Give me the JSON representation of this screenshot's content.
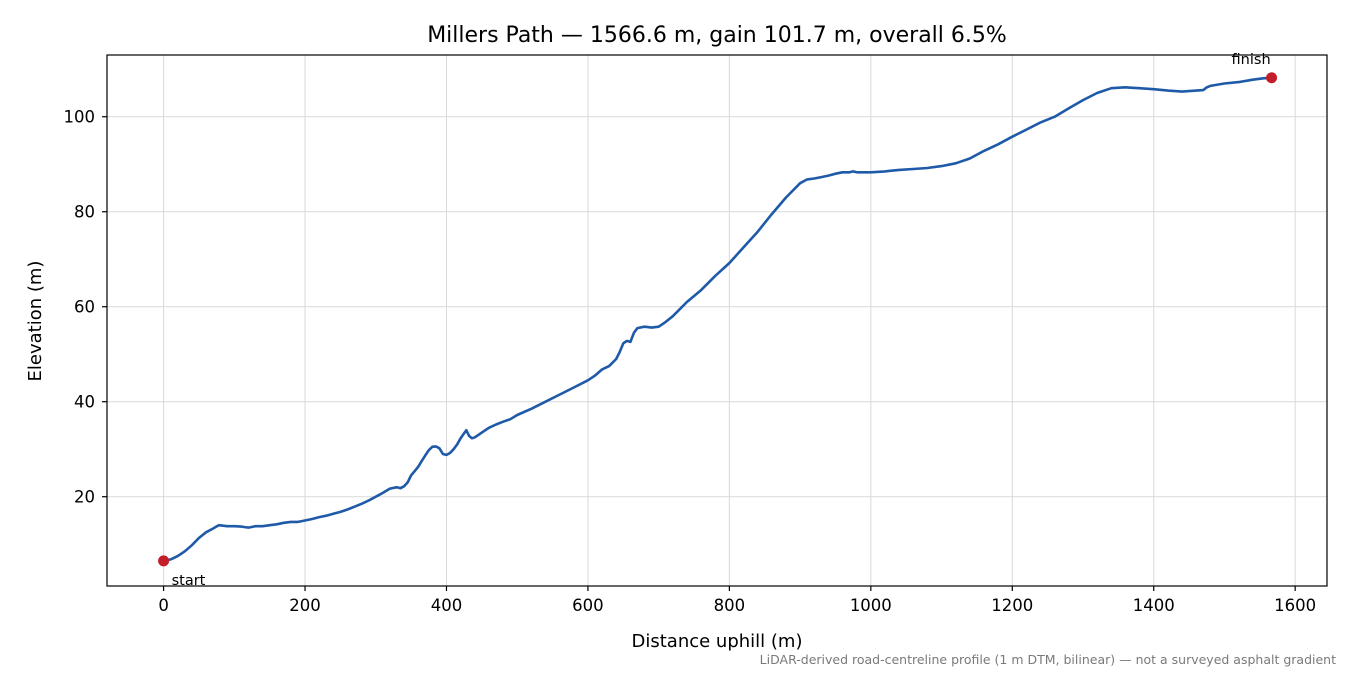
{
  "chart_data": {
    "type": "line",
    "title": "Millers Path — 1566.6 m, gain 101.7 m, overall 6.5%",
    "xlabel": "Distance uphill (m)",
    "ylabel": "Elevation (m)",
    "xlim": [
      -80,
      1645
    ],
    "ylim": [
      1.2,
      113
    ],
    "x_ticks": [
      0,
      200,
      400,
      600,
      800,
      1000,
      1200,
      1400,
      1600
    ],
    "y_ticks": [
      20,
      40,
      60,
      80,
      100
    ],
    "grid": true,
    "series": [
      {
        "color": "#1f5aa8",
        "x": [
          0,
          10,
          20,
          30,
          40,
          50,
          60,
          70,
          78,
          90,
          100,
          110,
          120,
          130,
          140,
          150,
          160,
          170,
          180,
          190,
          200,
          210,
          220,
          230,
          240,
          250,
          260,
          270,
          280,
          290,
          300,
          310,
          320,
          330,
          335,
          340,
          345,
          350,
          355,
          360,
          365,
          370,
          375,
          380,
          385,
          390,
          395,
          400,
          405,
          410,
          415,
          420,
          425,
          428,
          432,
          436,
          440,
          445,
          450,
          460,
          470,
          480,
          490,
          500,
          520,
          540,
          560,
          580,
          600,
          610,
          620,
          630,
          640,
          645,
          650,
          655,
          660,
          665,
          670,
          680,
          690,
          700,
          710,
          720,
          730,
          740,
          760,
          780,
          800,
          820,
          840,
          860,
          880,
          900,
          910,
          920,
          930,
          940,
          950,
          960,
          970,
          975,
          980,
          1000,
          1020,
          1040,
          1060,
          1080,
          1100,
          1120,
          1140,
          1160,
          1180,
          1200,
          1220,
          1240,
          1260,
          1280,
          1300,
          1320,
          1340,
          1360,
          1370,
          1380,
          1400,
          1420,
          1440,
          1460,
          1470,
          1475,
          1480,
          1500,
          1520,
          1540,
          1555,
          1566.6
        ],
        "y": [
          6.5,
          6.8,
          7.5,
          8.5,
          9.8,
          11.3,
          12.5,
          13.3,
          14.0,
          13.8,
          13.8,
          13.7,
          13.5,
          13.8,
          13.8,
          14.0,
          14.2,
          14.5,
          14.7,
          14.7,
          15.0,
          15.3,
          15.7,
          16.0,
          16.4,
          16.8,
          17.3,
          17.9,
          18.5,
          19.2,
          20.0,
          20.8,
          21.7,
          22.0,
          21.8,
          22.2,
          23.0,
          24.5,
          25.4,
          26.3,
          27.5,
          28.7,
          29.8,
          30.5,
          30.6,
          30.2,
          29.0,
          28.8,
          29.2,
          30.0,
          31.0,
          32.3,
          33.4,
          34.0,
          32.8,
          32.3,
          32.5,
          33.0,
          33.5,
          34.5,
          35.2,
          35.8,
          36.3,
          37.2,
          38.5,
          40.0,
          41.5,
          43.0,
          44.5,
          45.5,
          46.8,
          47.5,
          49.0,
          50.5,
          52.3,
          52.8,
          52.6,
          54.5,
          55.5,
          55.8,
          55.6,
          55.8,
          56.8,
          58.0,
          59.5,
          61.0,
          63.5,
          66.5,
          69.2,
          72.5,
          75.8,
          79.5,
          83.0,
          86.0,
          86.8,
          87.0,
          87.3,
          87.6,
          88.0,
          88.3,
          88.3,
          88.5,
          88.3,
          88.3,
          88.5,
          88.8,
          89.0,
          89.2,
          89.6,
          90.2,
          91.2,
          92.8,
          94.2,
          95.8,
          97.3,
          98.8,
          100.0,
          101.8,
          103.5,
          105.0,
          106.0,
          106.2,
          106.1,
          106.0,
          105.8,
          105.5,
          105.3,
          105.5,
          105.6,
          106.2,
          106.5,
          107.0,
          107.3,
          107.8,
          108.1,
          108.2
        ]
      }
    ],
    "markers": [
      {
        "x": 0,
        "y": 6.5,
        "label": "start",
        "color": "#c41e2a"
      },
      {
        "x": 1566.6,
        "y": 108.2,
        "label": "finish",
        "color": "#c41e2a"
      }
    ],
    "footnote": "LiDAR-derived road-centreline profile (1 m DTM, bilinear) — not a surveyed asphalt gradient"
  }
}
